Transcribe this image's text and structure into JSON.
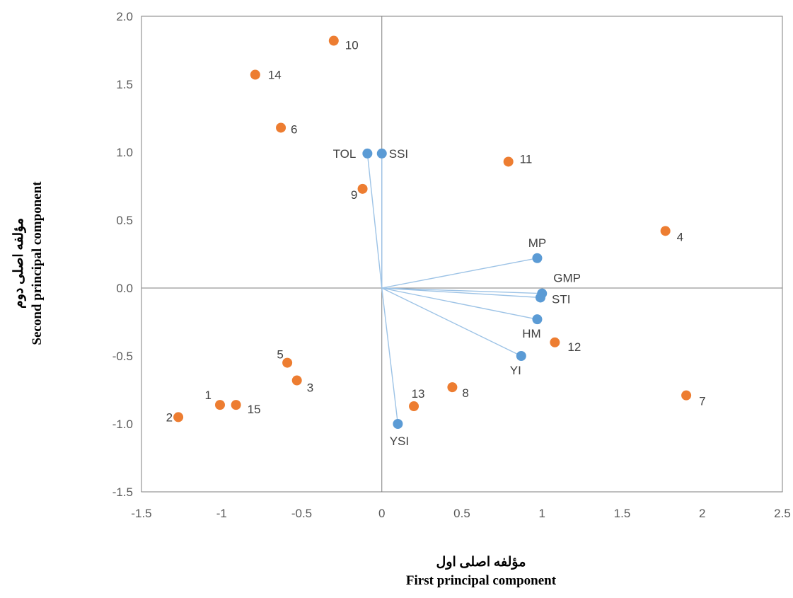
{
  "chart_data": {
    "type": "scatter",
    "xlabel": "مؤلفه اصلی اول",
    "xlabel_en": "First principal component",
    "ylabel": "مؤلفه اصلی دوم",
    "ylabel_en": "Second principal component",
    "xlim": [
      -1.5,
      2.5
    ],
    "ylim": [
      -1.5,
      2.0
    ],
    "xticks": [
      "-1.5",
      "-1",
      "-0.5",
      "0",
      "0.5",
      "1",
      "1.5",
      "2",
      "2.5"
    ],
    "yticks": [
      "-1.5",
      "-1.0",
      "-0.5",
      "0.0",
      "0.5",
      "1.0",
      "1.5",
      "2.0"
    ],
    "grid": false,
    "colors": {
      "genotypes": "#ED7D31",
      "indices": "#5B9BD5",
      "vectors": "#9DC3E6"
    },
    "genotypes": [
      {
        "label": "1",
        "x": -1.01,
        "y": -0.86
      },
      {
        "label": "2",
        "x": -1.27,
        "y": -0.95
      },
      {
        "label": "3",
        "x": -0.53,
        "y": -0.68
      },
      {
        "label": "4",
        "x": 1.77,
        "y": 0.42
      },
      {
        "label": "5",
        "x": -0.59,
        "y": -0.55
      },
      {
        "label": "6",
        "x": -0.63,
        "y": 1.18
      },
      {
        "label": "7",
        "x": 1.9,
        "y": -0.79
      },
      {
        "label": "8",
        "x": 0.44,
        "y": -0.73
      },
      {
        "label": "9",
        "x": -0.12,
        "y": 0.73
      },
      {
        "label": "10",
        "x": -0.3,
        "y": 1.82
      },
      {
        "label": "11",
        "x": 0.79,
        "y": 0.93
      },
      {
        "label": "12",
        "x": 1.08,
        "y": -0.4
      },
      {
        "label": "13",
        "x": 0.2,
        "y": -0.87
      },
      {
        "label": "14",
        "x": -0.79,
        "y": 1.57
      },
      {
        "label": "15",
        "x": -0.91,
        "y": -0.86
      }
    ],
    "indices": [
      {
        "label": "TOL",
        "x": -0.09,
        "y": 0.99
      },
      {
        "label": "SSI",
        "x": 0.0,
        "y": 0.99
      },
      {
        "label": "MP",
        "x": 0.97,
        "y": 0.22
      },
      {
        "label": "GMP",
        "x": 1.0,
        "y": -0.04
      },
      {
        "label": "STI",
        "x": 0.99,
        "y": -0.07
      },
      {
        "label": "HM",
        "x": 0.97,
        "y": -0.23
      },
      {
        "label": "YI",
        "x": 0.87,
        "y": -0.5
      },
      {
        "label": "YSI",
        "x": 0.1,
        "y": -1.0
      }
    ]
  }
}
